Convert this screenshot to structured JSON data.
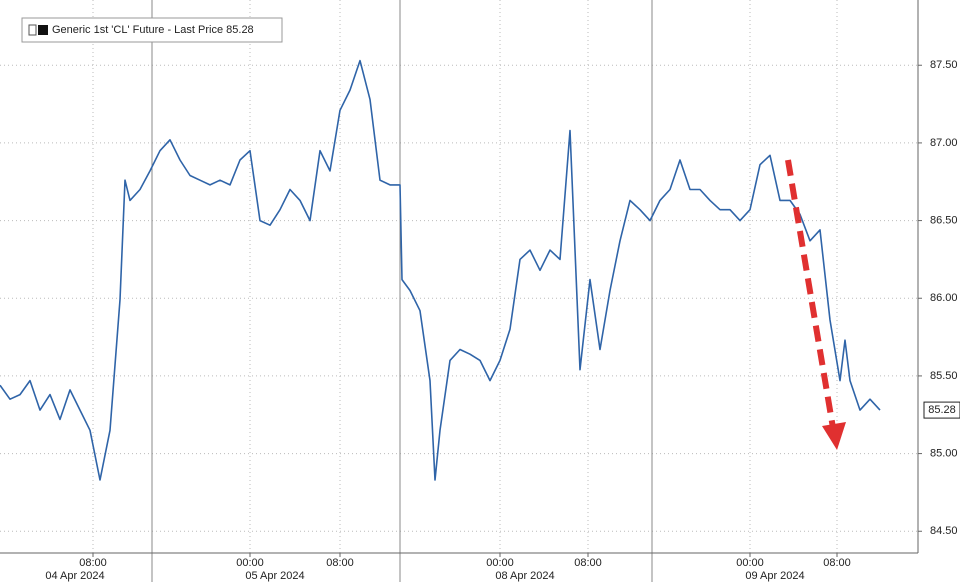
{
  "chart_data": {
    "type": "line",
    "legend": "Generic 1st 'CL' Future - Last Price 85.28",
    "series": [
      {
        "name": "Generic 1st 'CL' Future",
        "color": "#2f64a8",
        "x": [
          0,
          1,
          2,
          3,
          4,
          5,
          6,
          7,
          8,
          9,
          10,
          11,
          12,
          12.5,
          13,
          14,
          15,
          16,
          17,
          18,
          19,
          20,
          21,
          22,
          23,
          24,
          25,
          26,
          27,
          28,
          29,
          30,
          31,
          32,
          33,
          34,
          35,
          36,
          37,
          38,
          39,
          40,
          40.2,
          41,
          42,
          43,
          43.5,
          44,
          45,
          46,
          47,
          48,
          49,
          50,
          51,
          52,
          53,
          54,
          55,
          56,
          57,
          57.5,
          58,
          59,
          60,
          61,
          62,
          63,
          64,
          65,
          66,
          67,
          68,
          69,
          70,
          71,
          72,
          73,
          74,
          75,
          76,
          77,
          78,
          79,
          80,
          81,
          82,
          83,
          84,
          84.5,
          85,
          86,
          87,
          88
        ],
        "values": [
          85.44,
          85.35,
          85.38,
          85.47,
          85.28,
          85.38,
          85.22,
          85.41,
          85.28,
          85.15,
          84.83,
          85.15,
          85.99,
          86.76,
          86.63,
          86.7,
          86.82,
          86.95,
          87.02,
          86.89,
          86.79,
          86.76,
          86.73,
          86.76,
          86.73,
          86.89,
          86.95,
          86.5,
          86.47,
          86.57,
          86.7,
          86.63,
          86.5,
          86.95,
          86.82,
          87.21,
          87.34,
          87.53,
          87.28,
          86.76,
          86.73,
          86.73,
          86.12,
          86.05,
          85.92,
          85.47,
          84.83,
          85.15,
          85.6,
          85.67,
          85.64,
          85.6,
          85.47,
          85.6,
          85.8,
          86.25,
          86.31,
          86.18,
          86.31,
          86.25,
          87.08,
          86.31,
          85.54,
          86.12,
          85.67,
          86.05,
          86.37,
          86.63,
          86.57,
          86.5,
          86.63,
          86.7,
          86.89,
          86.7,
          86.7,
          86.63,
          86.57,
          86.57,
          86.5,
          86.57,
          86.86,
          86.92,
          86.63,
          86.63,
          86.54,
          86.37,
          86.44,
          85.86,
          85.47,
          85.73,
          85.47,
          85.28,
          85.35,
          85.28
        ]
      }
    ],
    "last_price": 85.28,
    "xlim": [
      0,
      91.8
    ],
    "xticks": [
      {
        "value": 9.3,
        "label": "08:00"
      },
      {
        "value": 25,
        "label": "00:00"
      },
      {
        "value": 34,
        "label": "08:00"
      },
      {
        "value": 50,
        "label": "00:00"
      },
      {
        "value": 58.8,
        "label": "08:00"
      },
      {
        "value": 75,
        "label": "00:00"
      },
      {
        "value": 83.7,
        "label": "08:00"
      }
    ],
    "x_date_labels": [
      {
        "value": 7.5,
        "label": "04 Apr 2024"
      },
      {
        "value": 27.5,
        "label": "05 Apr 2024"
      },
      {
        "value": 52.5,
        "label": "08 Apr 2024"
      },
      {
        "value": 77.5,
        "label": "09 Apr 2024"
      }
    ],
    "ylim": [
      84.36,
      87.92
    ],
    "yticks": [
      {
        "value": 84.5,
        "label": "84.50"
      },
      {
        "value": 85,
        "label": "85.00"
      },
      {
        "value": 85.5,
        "label": "85.50"
      },
      {
        "value": 86,
        "label": "86.00"
      },
      {
        "value": 86.5,
        "label": "86.50"
      },
      {
        "value": 87,
        "label": "87.00"
      },
      {
        "value": 87.5,
        "label": "87.50"
      }
    ],
    "grid": true
  }
}
